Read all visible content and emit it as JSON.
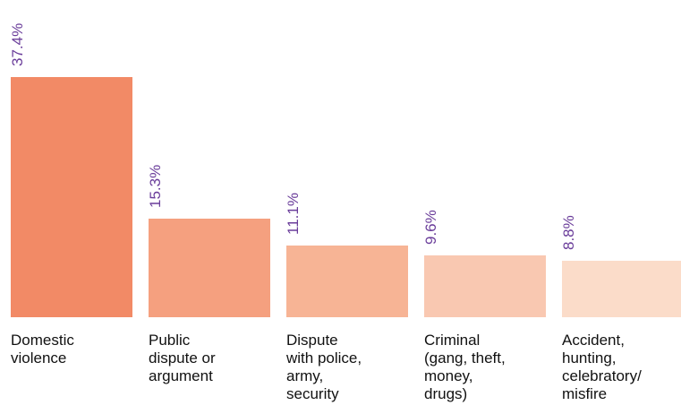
{
  "chart_data": {
    "type": "bar",
    "categories": [
      "Domestic\nviolence",
      "Public\ndispute or\nargument",
      "Dispute\nwith police,\narmy,\nsecurity",
      "Criminal\n(gang, theft,\nmoney,\ndrugs)",
      "Accident,\nhunting,\ncelebratory/\nmisfire"
    ],
    "values": [
      37.4,
      15.3,
      11.1,
      9.6,
      8.8
    ],
    "value_labels": [
      "37.4%",
      "15.3%",
      "11.1%",
      "9.6%",
      "8.8%"
    ],
    "ylim": [
      0,
      37.4
    ],
    "colors": [
      "#f28a66",
      "#f5a07f",
      "#f7b495",
      "#f9c8b1",
      "#fbdcc9"
    ],
    "label_color": "#6a3d9a",
    "grid": false,
    "legend": "none"
  }
}
